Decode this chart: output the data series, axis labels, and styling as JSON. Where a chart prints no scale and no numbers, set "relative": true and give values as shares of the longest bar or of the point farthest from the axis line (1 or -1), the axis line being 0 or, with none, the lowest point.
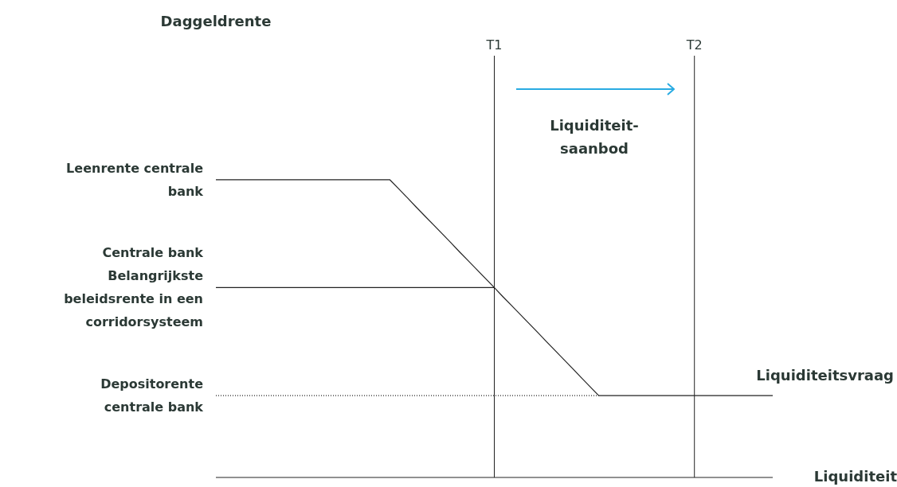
{
  "chart_data": {
    "type": "line",
    "relative": true,
    "ylabel": "Daggeldrente",
    "xlabel": "Liquiditeit",
    "marker": "none",
    "categories": [
      null,
      null,
      null,
      null,
      null,
      null,
      null,
      null,
      null,
      null,
      null,
      null,
      null,
      null,
      null,
      null,
      null,
      null,
      null,
      null,
      null,
      null,
      null,
      null,
      null,
      null,
      null,
      null,
      null,
      null,
      null,
      null,
      "T1",
      null,
      null,
      null,
      null,
      null,
      null,
      null,
      null,
      null,
      null,
      null,
      null,
      null,
      null,
      null,
      null,
      null,
      null,
      null,
      null,
      null,
      null,
      "T2",
      null,
      null,
      null,
      null,
      null,
      null,
      null,
      null,
      null
    ],
    "series": [
      {
        "name": "Centrale bank Belangrijkste beleidsrente in een corridorsysteem",
        "color": "#222222",
        "values": [
          0.638,
          0.638,
          0.638,
          0.638,
          0.638,
          0.638,
          0.638,
          0.638,
          0.638,
          0.638,
          0.638,
          0.638,
          0.638,
          0.638,
          0.638,
          0.638,
          0.638,
          0.638,
          0.638,
          0.638,
          0.638,
          0.638,
          0.638,
          0.638,
          0.638,
          0.638,
          0.638,
          0.638,
          0.638,
          0.638,
          0.638,
          0.638,
          0.638,
          null,
          null,
          null,
          null,
          null,
          null,
          null,
          null,
          null,
          null,
          null,
          null,
          null,
          null,
          null,
          null,
          null,
          null,
          null,
          null,
          null,
          null,
          null,
          null,
          null,
          null,
          null,
          null,
          null,
          null,
          null,
          null
        ]
      },
      {
        "name": "Depositorente centrale bank",
        "color": "#222222",
        "line_style": "dotted",
        "values": [
          0.275,
          0.275,
          0.275,
          0.275,
          0.275,
          0.275,
          0.275,
          0.275,
          0.275,
          0.275,
          0.275,
          0.275,
          0.275,
          0.275,
          0.275,
          0.275,
          0.275,
          0.275,
          0.275,
          0.275,
          0.275,
          0.275,
          0.275,
          0.275,
          0.275,
          0.275,
          0.275,
          0.275,
          0.275,
          0.275,
          0.275,
          0.275,
          0.275,
          0.275,
          0.275,
          0.275,
          0.275,
          0.275,
          0.275,
          0.275,
          0.275,
          0.275,
          0.275,
          0.275,
          0.275,
          null,
          null,
          null,
          null,
          null,
          null,
          null,
          null,
          null,
          null,
          null,
          null,
          null,
          null,
          null,
          null,
          null,
          null,
          null,
          null
        ]
      },
      {
        "name": "Liquiditeitsvraag",
        "color": "#222222",
        "values": [
          1,
          1,
          1,
          1,
          1,
          1,
          1,
          1,
          1,
          1,
          1,
          1,
          1,
          1,
          1,
          1,
          1,
          1,
          1,
          1,
          1,
          0.97,
          0.94,
          0.909,
          0.879,
          0.849,
          0.819,
          0.789,
          0.758,
          0.728,
          0.698,
          0.668,
          0.638,
          0.607,
          0.577,
          0.547,
          0.517,
          0.487,
          0.456,
          0.426,
          0.396,
          0.366,
          0.335,
          0.305,
          0.275,
          0.275,
          0.275,
          0.275,
          0.275,
          0.275,
          0.275,
          0.275,
          0.275,
          0.275,
          0.275,
          0.275,
          0.275,
          0.275,
          0.275,
          0.275,
          0.275,
          0.275,
          0.275,
          0.275,
          0.275
        ]
      }
    ],
    "ref_lines": [
      {
        "axis": "x",
        "value": "T1",
        "color": "#222222"
      },
      {
        "axis": "x",
        "value": "T2",
        "color": "#222222"
      }
    ],
    "annotations": [
      "Leenrente centrale bank",
      "Liquiditeit-saanbod"
    ]
  }
}
